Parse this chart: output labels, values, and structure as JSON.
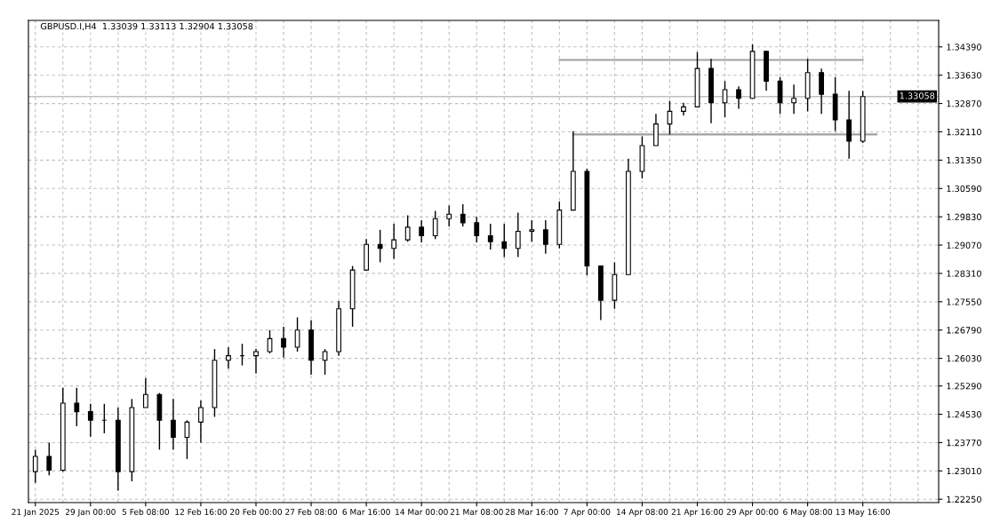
{
  "chart_data": {
    "type": "candlestick",
    "title": "GBPUSD.I,H4  1.33039 1.33113 1.32904 1.33058",
    "categories": [
      "21 Jan 2025",
      null,
      null,
      null,
      "29 Jan 00:00",
      null,
      null,
      null,
      "5 Feb 08:00",
      null,
      null,
      null,
      "12 Feb 16:00",
      null,
      null,
      null,
      "20 Feb 00:00",
      null,
      null,
      null,
      "27 Feb 08:00",
      null,
      null,
      null,
      "6 Mar 16:00",
      null,
      null,
      null,
      "14 Mar 00:00",
      null,
      null,
      null,
      "21 Mar 08:00",
      null,
      null,
      null,
      "28 Mar 16:00",
      null,
      null,
      null,
      "7 Apr 00:00",
      null,
      null,
      null,
      "14 Apr 08:00",
      null,
      null,
      null,
      "21 Apr 16:00",
      null,
      null,
      null,
      "29 Apr 00:00",
      null,
      null,
      null,
      "6 May 08:00",
      null,
      null,
      null,
      "13 May 16:00",
      null,
      null,
      null,
      null,
      null
    ],
    "ohlc": [
      [
        1.2299,
        1.2358,
        1.2269,
        1.234
      ],
      [
        1.234,
        1.2377,
        1.2289,
        1.2303
      ],
      [
        1.2303,
        1.2524,
        1.2299,
        1.2483
      ],
      [
        1.2483,
        1.2524,
        1.2421,
        1.246
      ],
      [
        1.246,
        1.2481,
        1.2393,
        1.2437
      ],
      [
        1.2437,
        1.2481,
        1.2402,
        1.2437
      ],
      [
        1.2437,
        1.2471,
        1.2248,
        1.2299
      ],
      [
        1.2299,
        1.2494,
        1.2273,
        1.2471
      ],
      [
        1.2471,
        1.255,
        1.2471,
        1.2506
      ],
      [
        1.2506,
        1.251,
        1.2358,
        1.2437
      ],
      [
        1.2437,
        1.2494,
        1.2358,
        1.2391
      ],
      [
        1.2391,
        1.2437,
        1.2333,
        1.2432
      ],
      [
        1.2432,
        1.249,
        1.2377,
        1.2471
      ],
      [
        1.2471,
        1.2628,
        1.2446,
        1.2598
      ],
      [
        1.2598,
        1.2633,
        1.2575,
        1.261
      ],
      [
        1.261,
        1.2642,
        1.2584,
        1.261
      ],
      [
        1.261,
        1.2628,
        1.2563,
        1.2621
      ],
      [
        1.2621,
        1.2679,
        1.2616,
        1.2656
      ],
      [
        1.2656,
        1.2688,
        1.2605,
        1.2633
      ],
      [
        1.2633,
        1.2713,
        1.2621,
        1.2679
      ],
      [
        1.2679,
        1.2706,
        1.2559,
        1.2598
      ],
      [
        1.2598,
        1.2628,
        1.2559,
        1.2621
      ],
      [
        1.2621,
        1.2757,
        1.261,
        1.2736
      ],
      [
        1.2736,
        1.2851,
        1.2688,
        1.284
      ],
      [
        1.284,
        1.2923,
        1.284,
        1.2909
      ],
      [
        1.2909,
        1.2948,
        1.2861,
        1.2898
      ],
      [
        1.2898,
        1.2964,
        1.287,
        1.2921
      ],
      [
        1.2921,
        1.2987,
        1.2916,
        1.2955
      ],
      [
        1.2955,
        1.2974,
        1.2914,
        1.2932
      ],
      [
        1.2932,
        1.2999,
        1.2923,
        1.2978
      ],
      [
        1.2978,
        1.3013,
        1.2957,
        1.299
      ],
      [
        1.299,
        1.3017,
        1.2957,
        1.2967
      ],
      [
        1.2967,
        1.2983,
        1.2914,
        1.2932
      ],
      [
        1.2932,
        1.2964,
        1.2895,
        1.2916
      ],
      [
        1.2916,
        1.2964,
        1.2875,
        1.2898
      ],
      [
        1.2898,
        1.2994,
        1.2875,
        1.2944
      ],
      [
        1.2944,
        1.2974,
        1.2916,
        1.2948
      ],
      [
        1.2948,
        1.2974,
        1.2884,
        1.2909
      ],
      [
        1.2909,
        1.3024,
        1.2898,
        1.3001
      ],
      [
        1.3001,
        1.3213,
        1.3001,
        1.3105
      ],
      [
        1.3105,
        1.3112,
        1.2826,
        1.2851
      ],
      [
        1.2851,
        1.2851,
        1.2706,
        1.2759
      ],
      [
        1.2759,
        1.2861,
        1.2736,
        1.2828
      ],
      [
        1.2828,
        1.3139,
        1.2828,
        1.3105
      ],
      [
        1.3105,
        1.3199,
        1.3086,
        1.3174
      ],
      [
        1.3174,
        1.3259,
        1.3174,
        1.3232
      ],
      [
        1.3232,
        1.3294,
        1.3204,
        1.3266
      ],
      [
        1.3266,
        1.3289,
        1.3255,
        1.3278
      ],
      [
        1.3278,
        1.3425,
        1.3278,
        1.3381
      ],
      [
        1.3381,
        1.3407,
        1.3234,
        1.3289
      ],
      [
        1.3289,
        1.3347,
        1.325,
        1.3324
      ],
      [
        1.3324,
        1.3333,
        1.3273,
        1.3301
      ],
      [
        1.3301,
        1.3446,
        1.3301,
        1.3427
      ],
      [
        1.3427,
        1.3427,
        1.3321,
        1.3347
      ],
      [
        1.3347,
        1.3358,
        1.3259,
        1.3289
      ],
      [
        1.3289,
        1.3338,
        1.3259,
        1.3301
      ],
      [
        1.3301,
        1.3407,
        1.3266,
        1.337
      ],
      [
        1.337,
        1.3381,
        1.3259,
        1.3312
      ],
      [
        1.3312,
        1.3358,
        1.3213,
        1.3243
      ],
      [
        1.3243,
        1.3321,
        1.3139,
        1.3186
      ],
      [
        1.3186,
        1.3321,
        1.3181,
        1.33058
      ],
      null,
      null,
      null,
      null,
      null
    ],
    "series": [
      {
        "type": "line",
        "color": "#a0a0a0",
        "values": [
          null,
          null,
          null,
          null,
          null,
          null,
          null,
          null,
          null,
          null,
          null,
          null,
          null,
          null,
          null,
          null,
          null,
          null,
          null,
          null,
          null,
          null,
          null,
          null,
          null,
          null,
          null,
          null,
          null,
          null,
          null,
          null,
          null,
          null,
          null,
          null,
          null,
          null,
          1.3404,
          1.3404,
          1.3404,
          1.3404,
          1.3404,
          1.3404,
          1.3404,
          1.3404,
          1.3404,
          1.3404,
          1.3404,
          1.3404,
          1.3404,
          1.3404,
          1.3404,
          1.3404,
          1.3404,
          1.3404,
          1.3404,
          1.3404,
          1.3404,
          1.3404,
          1.3404,
          null,
          null,
          null,
          null,
          null
        ]
      },
      {
        "type": "line",
        "color": "#a0a0a0",
        "values": [
          null,
          null,
          null,
          null,
          null,
          null,
          null,
          null,
          null,
          null,
          null,
          null,
          null,
          null,
          null,
          null,
          null,
          null,
          null,
          null,
          null,
          null,
          null,
          null,
          null,
          null,
          null,
          null,
          null,
          null,
          null,
          null,
          null,
          null,
          null,
          null,
          null,
          null,
          null,
          1.3204,
          1.3204,
          1.3204,
          1.3204,
          1.3204,
          1.3204,
          1.3204,
          1.3204,
          1.3204,
          1.3204,
          1.3204,
          1.3204,
          1.3204,
          1.3204,
          1.3204,
          1.3204,
          1.3204,
          1.3204,
          1.3204,
          1.3204,
          1.3204,
          1.3204,
          1.3204,
          null,
          null,
          null,
          null
        ]
      }
    ],
    "ref_lines": [
      {
        "axis": "y",
        "value": 1.33058,
        "label": "1.33058",
        "color": "#c0c0c0"
      }
    ],
    "ylim": [
      1.2216,
      1.351
    ],
    "yticks": [
      {
        "value": 1.2225,
        "label": "1.22250"
      },
      {
        "value": 1.2301,
        "label": "1.23010"
      },
      {
        "value": 1.2377,
        "label": "1.23770"
      },
      {
        "value": 1.2453,
        "label": "1.24530"
      },
      {
        "value": 1.2529,
        "label": "1.25290"
      },
      {
        "value": 1.2603,
        "label": "1.26030"
      },
      {
        "value": 1.2679,
        "label": "1.26790"
      },
      {
        "value": 1.2755,
        "label": "1.27550"
      },
      {
        "value": 1.2831,
        "label": "1.28310"
      },
      {
        "value": 1.2907,
        "label": "1.29070"
      },
      {
        "value": 1.2983,
        "label": "1.29830"
      },
      {
        "value": 1.3059,
        "label": "1.30590"
      },
      {
        "value": 1.3135,
        "label": "1.31350"
      },
      {
        "value": 1.3211,
        "label": "1.32110"
      },
      {
        "value": 1.3287,
        "label": "1.32870"
      },
      {
        "value": 1.3363,
        "label": "1.33630"
      },
      {
        "value": 1.3439,
        "label": "1.34390"
      }
    ],
    "grid": true
  }
}
